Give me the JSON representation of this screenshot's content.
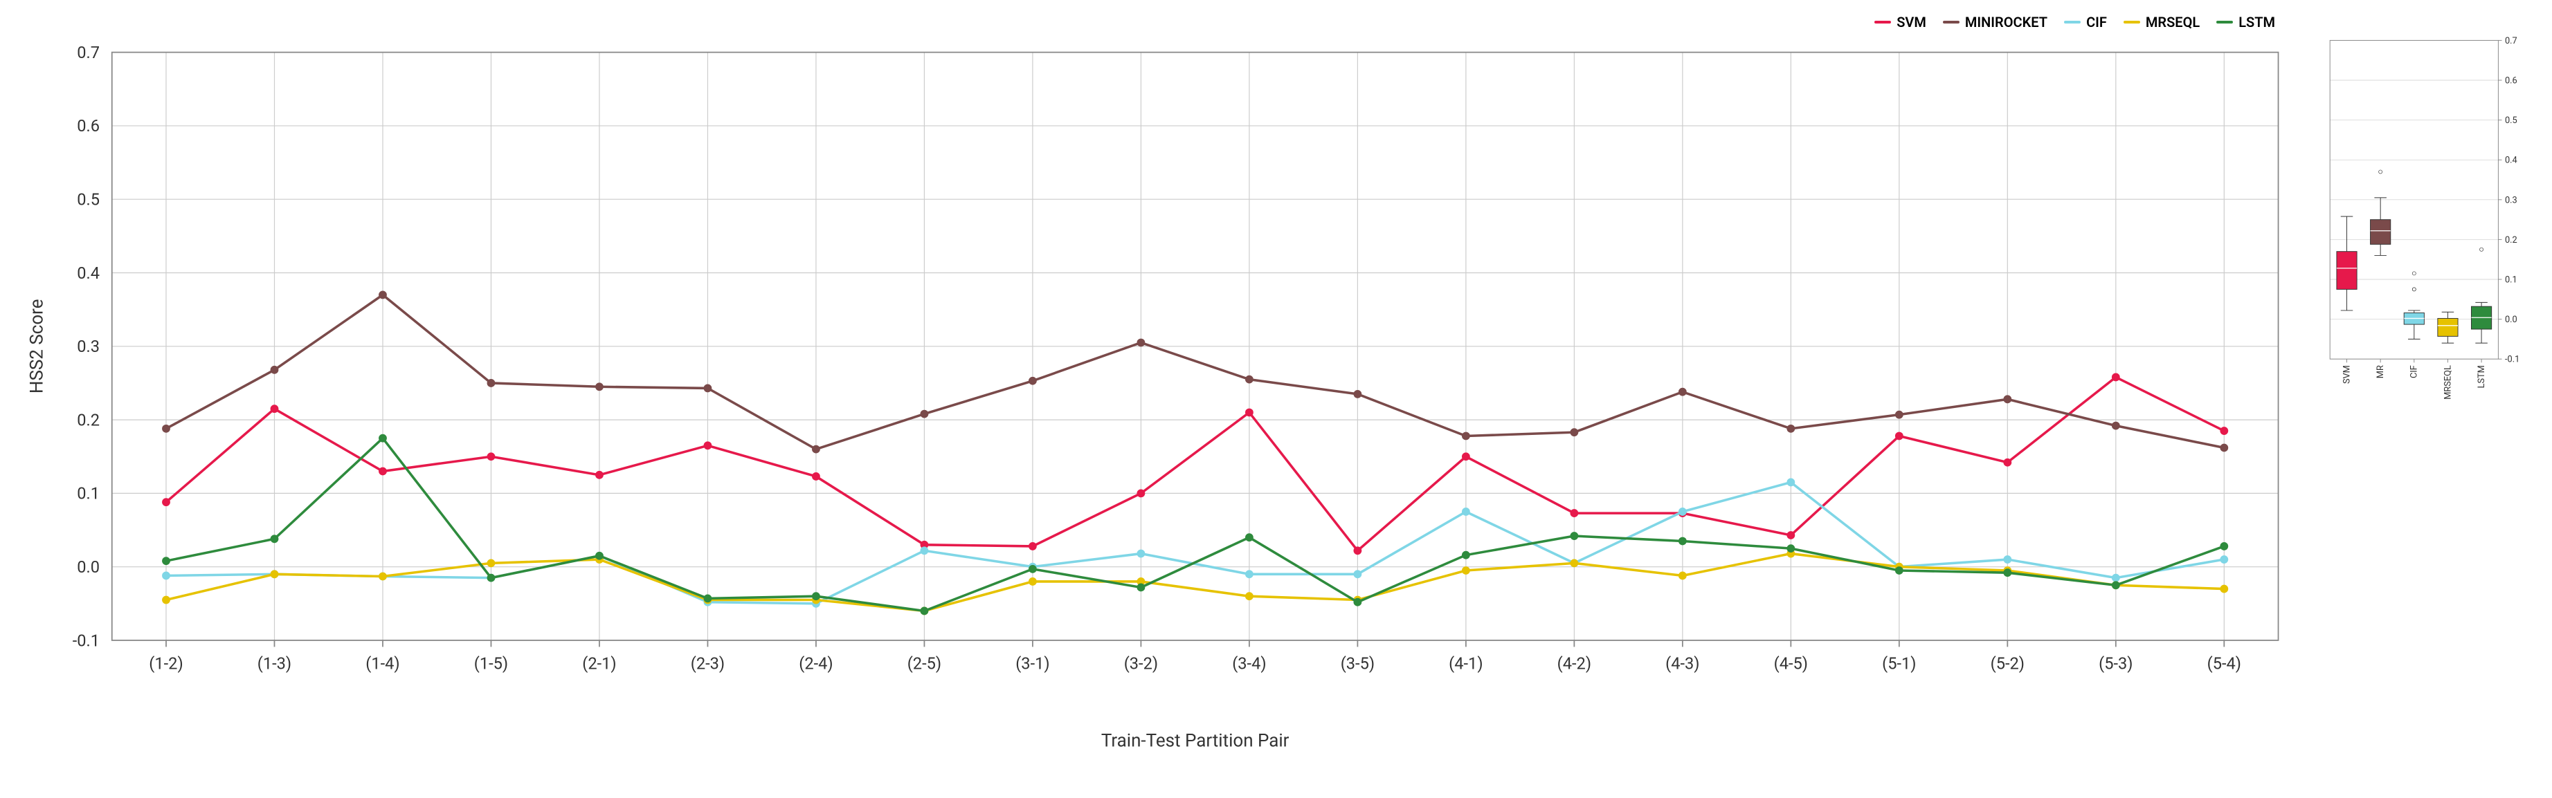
{
  "line_chart": {
    "type": "line",
    "xlabel": "Train-Test Partition Pair",
    "ylabel": "HSS2 Score",
    "categories": [
      "(1-2)",
      "(1-3)",
      "(1-4)",
      "(1-5)",
      "(2-1)",
      "(2-3)",
      "(2-4)",
      "(2-5)",
      "(3-1)",
      "(3-2)",
      "(3-4)",
      "(3-5)",
      "(4-1)",
      "(4-2)",
      "(4-3)",
      "(4-5)",
      "(5-1)",
      "(5-2)",
      "(5-3)",
      "(5-4)"
    ],
    "ylim": [
      -0.1,
      0.7
    ],
    "ytick_step": 0.1,
    "series": [
      {
        "name": "SVM",
        "color": "#e6194b",
        "values": [
          0.088,
          0.215,
          0.13,
          0.15,
          0.125,
          0.165,
          0.123,
          0.03,
          0.028,
          0.1,
          0.21,
          0.022,
          0.15,
          0.073,
          0.073,
          0.043,
          0.178,
          0.142,
          0.258,
          0.185
        ]
      },
      {
        "name": "MINIROCKET",
        "color": "#7a4a4a",
        "values": [
          0.188,
          0.268,
          0.37,
          0.25,
          0.245,
          0.243,
          0.16,
          0.208,
          0.253,
          0.305,
          0.255,
          0.235,
          0.178,
          0.183,
          0.238,
          0.188,
          0.207,
          0.228,
          0.192,
          0.162
        ]
      },
      {
        "name": "CIF",
        "color": "#7fd6e6",
        "values": [
          -0.012,
          -0.01,
          -0.013,
          -0.015,
          0.015,
          -0.048,
          -0.05,
          0.022,
          0.0,
          0.018,
          -0.01,
          -0.01,
          0.075,
          0.005,
          0.075,
          0.115,
          0.0,
          0.01,
          -0.015,
          0.01
        ]
      },
      {
        "name": "MRSEQL",
        "color": "#e6c200",
        "values": [
          -0.045,
          -0.01,
          -0.013,
          0.005,
          0.01,
          -0.045,
          -0.045,
          -0.06,
          -0.02,
          -0.02,
          -0.04,
          -0.045,
          -0.005,
          0.005,
          -0.012,
          0.018,
          0.0,
          -0.005,
          -0.025,
          -0.03
        ]
      },
      {
        "name": "LSTM",
        "color": "#2e8b3d",
        "values": [
          0.008,
          0.038,
          0.175,
          -0.015,
          0.015,
          -0.043,
          -0.04,
          -0.06,
          -0.003,
          -0.028,
          0.04,
          -0.048,
          0.016,
          0.042,
          0.035,
          0.025,
          -0.005,
          -0.008,
          -0.025,
          0.028
        ]
      }
    ],
    "background_color": "#ffffff",
    "grid_color": "#cccccc",
    "border_color": "#888888",
    "label_fontsize": 22,
    "tick_fontsize": 20,
    "line_width": 3,
    "marker_size": 5
  },
  "box_chart": {
    "type": "boxplot",
    "ylim": [
      -0.1,
      0.7
    ],
    "ytick_step": 0.1,
    "categories": [
      "SVM",
      "MR",
      "CIF",
      "MRSEQL",
      "LSTM"
    ],
    "boxes": [
      {
        "name": "SVM",
        "color": "#e6194b",
        "q1": 0.075,
        "median": 0.128,
        "q3": 0.17,
        "wlo": 0.022,
        "whi": 0.258,
        "outliers": []
      },
      {
        "name": "MR",
        "color": "#7a4a4a",
        "q1": 0.188,
        "median": 0.222,
        "q3": 0.25,
        "wlo": 0.16,
        "whi": 0.305,
        "outliers": [
          0.37
        ]
      },
      {
        "name": "CIF",
        "color": "#7fd6e6",
        "q1": -0.013,
        "median": 0.002,
        "q3": 0.016,
        "wlo": -0.05,
        "whi": 0.022,
        "outliers": [
          0.075,
          0.075,
          0.115
        ]
      },
      {
        "name": "MRSEQL",
        "color": "#e6c200",
        "q1": -0.043,
        "median": -0.016,
        "q3": 0.002,
        "wlo": -0.06,
        "whi": 0.018,
        "outliers": []
      },
      {
        "name": "LSTM",
        "color": "#2e8b3d",
        "q1": -0.025,
        "median": 0.004,
        "q3": 0.032,
        "wlo": -0.06,
        "whi": 0.042,
        "outliers": [
          0.175
        ]
      }
    ],
    "background_color": "#ffffff",
    "grid_color": "#cccccc",
    "border_color": "#888888",
    "box_width": 0.6,
    "whisker_color": "#333333",
    "median_color": "#ffffff"
  },
  "legend_labels": {
    "svm": "SVM",
    "minirocket": "MINIROCKET",
    "cif": "CIF",
    "mrseql": "MRSEQL",
    "lstm": "LSTM"
  }
}
